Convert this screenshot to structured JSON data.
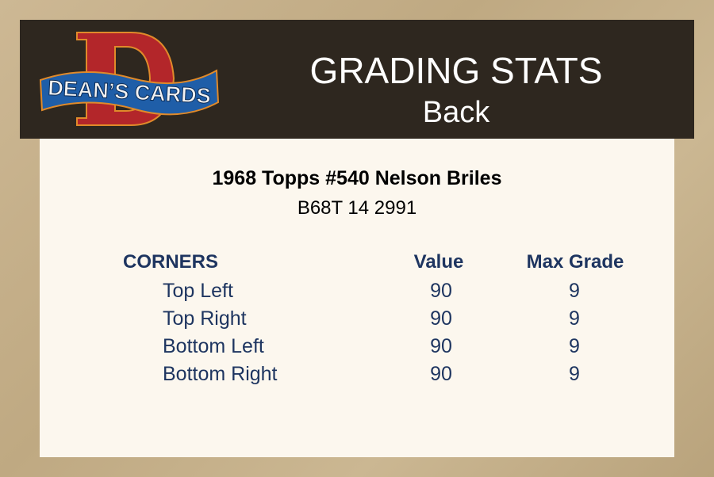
{
  "header": {
    "logo_text": "DEAN'S CARDS",
    "title": "GRADING STATS",
    "subtitle": "Back"
  },
  "card": {
    "title": "1968 Topps #540 Nelson Briles",
    "code": "B68T 14 2991"
  },
  "table": {
    "headers": {
      "section": "CORNERS",
      "value": "Value",
      "max_grade": "Max Grade"
    },
    "rows": [
      {
        "label": "Top Left",
        "value": "90",
        "max_grade": "9"
      },
      {
        "label": "Top Right",
        "value": "90",
        "max_grade": "9"
      },
      {
        "label": "Bottom Left",
        "value": "90",
        "max_grade": "9"
      },
      {
        "label": "Bottom Right",
        "value": "90",
        "max_grade": "9"
      }
    ]
  },
  "colors": {
    "header_bg": "#2e271f",
    "panel_bg": "#fcf7ee",
    "text_accent": "#1e3560",
    "logo_red": "#b3262a",
    "logo_blue": "#1f5ea8"
  }
}
